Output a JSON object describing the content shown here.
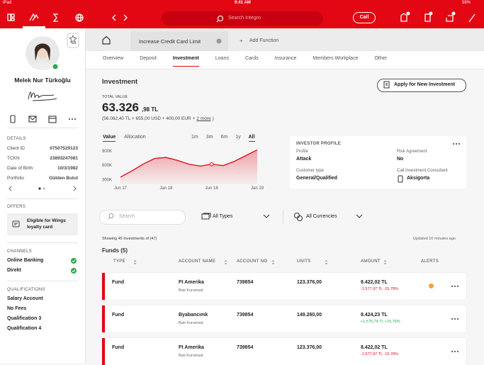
{
  "status": {
    "carrier": "iPad",
    "time": "9:41 AM",
    "battery": "58%"
  },
  "topbar": {
    "search": "Search Integro",
    "call": "Call"
  },
  "profile": {
    "badge": "3x1",
    "name": "Melek Nur Türkoğlu"
  },
  "details": {
    "heading": "DETAILS",
    "rows": [
      [
        "Client ID",
        "07507529123"
      ],
      [
        "TCKN",
        "23893247081"
      ],
      [
        "Date of Birth",
        "10/3/1982"
      ],
      [
        "Portfolio",
        "Gülden Bulut"
      ]
    ]
  },
  "offers": {
    "heading": "OFFERS",
    "items": [
      "Eligible for Wings loyalty card"
    ]
  },
  "channels": {
    "heading": "CHANNELS",
    "items": [
      "Online Banking",
      "Direkt"
    ]
  },
  "qualifications": {
    "heading": "QUALIFICATIONS",
    "items": [
      "Salary Account",
      "No Fees",
      "Qualification 3",
      "Qualification 4"
    ]
  },
  "tabs": {
    "active": "Increase Credit Card Limit",
    "add": "Add Function"
  },
  "nav": {
    "items": [
      "Overview",
      "Deposit",
      "Investment",
      "Loans",
      "Cards",
      "Insurance",
      "Members Workplace",
      "Other"
    ],
    "active": 2
  },
  "investment": {
    "title": "Investment",
    "apply": "Apply for New Investment",
    "total_label": "TOTAL VALUE",
    "total_int": "63.326",
    "total_dec": ",98 TL",
    "breakdown": "(56.062,40 TL + 655,00 USD + 400,00 EUR +",
    "more": "2 more",
    "close": ")",
    "chart": {
      "toggles": [
        "Value",
        "Allocation"
      ],
      "ranges": [
        "1m",
        "3m",
        "6m",
        "1y",
        "All"
      ],
      "active_range": 4,
      "categories": [
        "Jun 17",
        null,
        null,
        null,
        "Jan 18",
        null,
        null,
        null,
        "Jun 18",
        null,
        null,
        null,
        "Jan 19"
      ],
      "values": [
        350000,
        480000,
        620000,
        740000,
        760000,
        700000,
        620000,
        580000,
        620000,
        590000,
        680000,
        800000,
        920000
      ],
      "highlight": 8,
      "color": "#e30613",
      "ylim": [
        200000,
        1000000
      ],
      "yticks": [
        {
          "value": 900000,
          "label": "900K"
        },
        {
          "value": 600000,
          "label": "600K"
        },
        {
          "value": 300000,
          "label": "300K"
        }
      ]
    },
    "investor": {
      "heading": "INVESTOR PROFILE",
      "fields": [
        [
          "Profile",
          "Attack"
        ],
        [
          "Risk Agreement",
          "No"
        ],
        [
          "Customer type",
          "General/Qualified"
        ],
        [
          "Call Investment Consultant",
          "Aksigorta"
        ]
      ]
    }
  },
  "filters": {
    "search": "Search",
    "types": "All Types",
    "currencies": "All Currencies"
  },
  "list": {
    "showing": "Showing 45 Investments of (47)",
    "updated": "Updated 10 minutes ago",
    "group": "Funds (5)",
    "columns": [
      "TYPE",
      "ACCOUNT NAME",
      "ACCOUNT NO",
      "UNITS",
      "AMOUNT",
      "ALERTS"
    ],
    "rows": [
      {
        "type": "Fund",
        "name": "Ft Amerika",
        "sub": "Batı Kurumsal",
        "no": "739854",
        "units": "123.376,00",
        "amount": "8.422,02 TL",
        "change": "-1.577,97 TL -15,78%",
        "trend": "down",
        "alert": true
      },
      {
        "type": "Fund",
        "name": "Byabancımk",
        "sub": "Batı Kurumsal",
        "no": "739854",
        "units": "149.260,00",
        "amount": "8.424,23 TL",
        "change": "+1.575,74 TL +15,76%",
        "trend": "up",
        "alert": false
      },
      {
        "type": "Fund",
        "name": "Ft Amerika",
        "sub": "Batı Kurumsal",
        "no": "739854",
        "units": "123.376,00",
        "amount": "8.422,02 TL",
        "change": "-1.577,97 TL -15,78%",
        "trend": "down",
        "alert": false
      }
    ]
  }
}
